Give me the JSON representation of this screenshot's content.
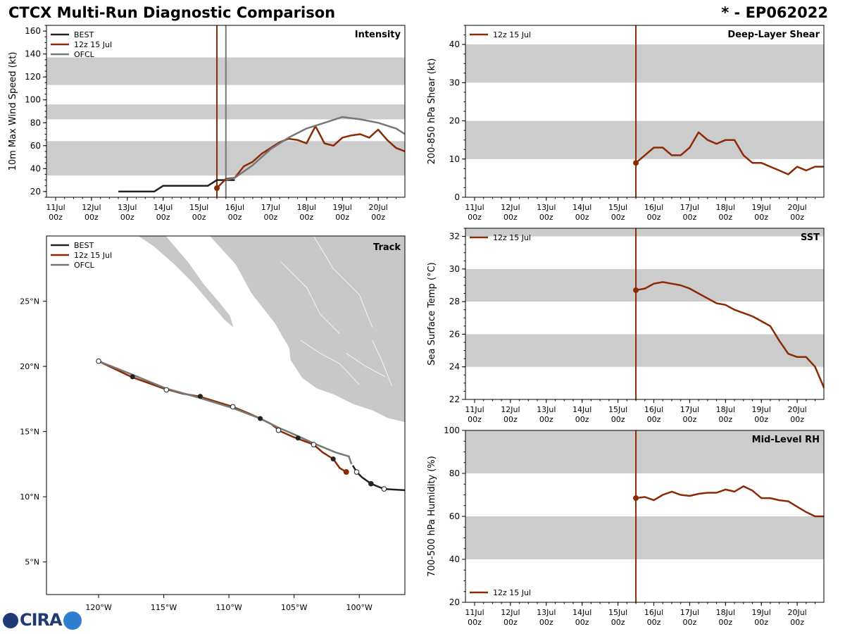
{
  "header": {
    "title": "CTCX Multi-Run Diagnostic Comparison",
    "storm_id": "* - EP062022"
  },
  "logo": {
    "text": "CIRA"
  },
  "colors": {
    "best": "#222222",
    "run": "#8b2a05",
    "ofcl": "#777777",
    "band": "#cccccc",
    "land": "#c8c8c8"
  },
  "time_axis": {
    "range_days": [
      0,
      5.8
    ],
    "ticks": [
      {
        "day": 0,
        "label": "11Jul",
        "sub": "00z"
      },
      {
        "day": 1,
        "label": "12Jul",
        "sub": "00z"
      },
      {
        "day": 2,
        "label": "13Jul",
        "sub": "00z"
      },
      {
        "day": 3,
        "label": "14Jul",
        "sub": "00z"
      },
      {
        "day": 4,
        "label": "15Jul",
        "sub": "00z"
      },
      {
        "day": 5,
        "label": "16Jul",
        "sub": "00z"
      },
      {
        "day": 6,
        "label": "17Jul",
        "sub": "00z"
      },
      {
        "day": 7,
        "label": "18Jul",
        "sub": "00z"
      },
      {
        "day": 8,
        "label": "19Jul",
        "sub": "00z"
      },
      {
        "day": 9,
        "label": "20Jul",
        "sub": "00z"
      }
    ]
  },
  "chart_data": [
    {
      "id": "intensity",
      "type": "line",
      "title": "Intensity",
      "ylabel": "10m Max Wind Speed (kt)",
      "xlim": [
        -0.25,
        9.75
      ],
      "ylim": [
        15,
        165
      ],
      "yticks": [
        20,
        40,
        60,
        80,
        100,
        120,
        140,
        160
      ],
      "bands": [
        [
          34,
          64
        ],
        [
          83,
          96
        ],
        [
          113,
          137
        ]
      ],
      "vlines": [
        {
          "x": 4.5,
          "series": "run"
        },
        {
          "x": 4.75,
          "series": "ofcl"
        }
      ],
      "legend": [
        "BEST",
        "12z 15 Jul",
        "OFCL"
      ],
      "series": [
        {
          "name": "BEST",
          "key": "best",
          "points": [
            [
              1.75,
              20
            ],
            [
              2,
              20
            ],
            [
              2.25,
              20
            ],
            [
              2.5,
              20
            ],
            [
              2.75,
              20
            ],
            [
              3,
              25
            ],
            [
              3.25,
              25
            ],
            [
              3.5,
              25
            ],
            [
              3.75,
              25
            ],
            [
              4,
              25
            ],
            [
              4.25,
              25
            ],
            [
              4.5,
              30
            ],
            [
              4.75,
              30
            ],
            [
              5,
              30
            ]
          ]
        },
        {
          "name": "12z 15 Jul",
          "key": "run",
          "start_marker": true,
          "points": [
            [
              4.5,
              23
            ],
            [
              4.75,
              31
            ],
            [
              5,
              32
            ],
            [
              5.25,
              42
            ],
            [
              5.5,
              46
            ],
            [
              5.75,
              53
            ],
            [
              6,
              58
            ],
            [
              6.25,
              63
            ],
            [
              6.5,
              66
            ],
            [
              6.75,
              65
            ],
            [
              7,
              62
            ],
            [
              7.25,
              77
            ],
            [
              7.5,
              62
            ],
            [
              7.75,
              60
            ],
            [
              8,
              67
            ],
            [
              8.25,
              69
            ],
            [
              8.5,
              70
            ],
            [
              8.75,
              67
            ],
            [
              9,
              74
            ],
            [
              9.25,
              65
            ],
            [
              9.5,
              58
            ],
            [
              9.75,
              55
            ]
          ]
        },
        {
          "name": "OFCL",
          "key": "ofcl",
          "points": [
            [
              4.75,
              30
            ],
            [
              5,
              32
            ],
            [
              5.5,
              43
            ],
            [
              6,
              57
            ],
            [
              6.5,
              67
            ],
            [
              7,
              75
            ],
            [
              7.5,
              80
            ],
            [
              8,
              85
            ],
            [
              8.5,
              83
            ],
            [
              9,
              80
            ],
            [
              9.5,
              75
            ],
            [
              9.75,
              70
            ],
            [
              10,
              65
            ]
          ]
        }
      ]
    },
    {
      "id": "shear",
      "type": "line",
      "title": "Deep-Layer Shear",
      "ylabel": "200-850 hPa Shear (kt)",
      "xlim": [
        -0.25,
        9.75
      ],
      "ylim": [
        0,
        45
      ],
      "yticks": [
        0,
        10,
        20,
        30,
        40
      ],
      "bands": [
        [
          10,
          20
        ],
        [
          30,
          40
        ]
      ],
      "vlines": [
        {
          "x": 4.5,
          "series": "run"
        }
      ],
      "legend": [
        "12z 15 Jul"
      ],
      "series": [
        {
          "name": "12z 15 Jul",
          "key": "run",
          "start_marker": true,
          "points": [
            [
              4.5,
              9
            ],
            [
              4.75,
              11
            ],
            [
              5,
              13
            ],
            [
              5.25,
              13
            ],
            [
              5.5,
              11
            ],
            [
              5.75,
              11
            ],
            [
              6,
              13
            ],
            [
              6.25,
              17
            ],
            [
              6.5,
              15
            ],
            [
              6.75,
              14
            ],
            [
              7,
              15
            ],
            [
              7.25,
              15
            ],
            [
              7.5,
              11
            ],
            [
              7.75,
              9
            ],
            [
              8,
              9
            ],
            [
              8.25,
              8
            ],
            [
              8.5,
              7
            ],
            [
              8.75,
              6
            ],
            [
              9,
              8
            ],
            [
              9.25,
              7
            ],
            [
              9.5,
              8
            ],
            [
              9.75,
              8
            ]
          ]
        }
      ]
    },
    {
      "id": "sst",
      "type": "line",
      "title": "SST",
      "ylabel": "Sea Surface Temp (°C)",
      "xlim": [
        -0.25,
        9.75
      ],
      "ylim": [
        22,
        32.5
      ],
      "yticks": [
        22,
        24,
        26,
        28,
        30,
        32
      ],
      "bands": [
        [
          24,
          26
        ],
        [
          28,
          30
        ],
        [
          32,
          32.5
        ]
      ],
      "vlines": [
        {
          "x": 4.5,
          "series": "run"
        }
      ],
      "legend": [
        "12z 15 Jul"
      ],
      "series": [
        {
          "name": "12z 15 Jul",
          "key": "run",
          "start_marker": true,
          "points": [
            [
              4.5,
              28.7
            ],
            [
              4.75,
              28.8
            ],
            [
              5,
              29.1
            ],
            [
              5.25,
              29.2
            ],
            [
              5.5,
              29.1
            ],
            [
              5.75,
              29
            ],
            [
              6,
              28.8
            ],
            [
              6.25,
              28.5
            ],
            [
              6.5,
              28.2
            ],
            [
              6.75,
              27.9
            ],
            [
              7,
              27.8
            ],
            [
              7.25,
              27.5
            ],
            [
              7.5,
              27.3
            ],
            [
              7.75,
              27.1
            ],
            [
              8,
              26.8
            ],
            [
              8.25,
              26.5
            ],
            [
              8.5,
              25.6
            ],
            [
              8.75,
              24.8
            ],
            [
              9,
              24.6
            ],
            [
              9.25,
              24.6
            ],
            [
              9.5,
              24
            ],
            [
              9.75,
              22.7
            ]
          ]
        }
      ]
    },
    {
      "id": "rh",
      "type": "line",
      "title": "Mid-Level RH",
      "ylabel": "700-500 hPa Humidity (%)",
      "xlim": [
        -0.25,
        9.75
      ],
      "ylim": [
        20,
        100
      ],
      "yticks": [
        20,
        40,
        60,
        80,
        100
      ],
      "bands": [
        [
          40,
          60
        ],
        [
          80,
          100
        ]
      ],
      "vlines": [
        {
          "x": 4.5,
          "series": "run"
        }
      ],
      "legend": [
        "12z 15 Jul"
      ],
      "legend_position": "bottom-left",
      "series": [
        {
          "name": "12z 15 Jul",
          "key": "run",
          "start_marker": true,
          "points": [
            [
              4.5,
              68.5
            ],
            [
              4.75,
              69
            ],
            [
              5,
              67.5
            ],
            [
              5.25,
              70
            ],
            [
              5.5,
              71.5
            ],
            [
              5.75,
              70
            ],
            [
              6,
              69.5
            ],
            [
              6.25,
              70.5
            ],
            [
              6.5,
              71
            ],
            [
              6.75,
              71
            ],
            [
              7,
              72.5
            ],
            [
              7.25,
              71.5
            ],
            [
              7.5,
              74
            ],
            [
              7.75,
              72
            ],
            [
              8,
              68.5
            ],
            [
              8.25,
              68.5
            ],
            [
              8.5,
              67.5
            ],
            [
              8.75,
              67
            ],
            [
              9,
              64.5
            ],
            [
              9.25,
              62
            ],
            [
              9.5,
              60
            ],
            [
              9.75,
              60
            ]
          ]
        }
      ]
    },
    {
      "id": "track",
      "type": "scatter",
      "title": "Track",
      "xlim": [
        -124,
        -96.5
      ],
      "ylim": [
        2.5,
        30
      ],
      "xticks": [
        {
          "v": -120,
          "label": "120°W"
        },
        {
          "v": -115,
          "label": "115°W"
        },
        {
          "v": -110,
          "label": "110°W"
        },
        {
          "v": -105,
          "label": "105°W"
        },
        {
          "v": -100,
          "label": "100°W"
        }
      ],
      "yticks": [
        {
          "v": 5,
          "label": "5°N"
        },
        {
          "v": 10,
          "label": "10°N"
        },
        {
          "v": 15,
          "label": "15°N"
        },
        {
          "v": 20,
          "label": "20°N"
        },
        {
          "v": 25,
          "label": "25°N"
        }
      ],
      "legend": [
        "BEST",
        "12z 15 Jul",
        "OFCL"
      ],
      "series": [
        {
          "name": "BEST",
          "key": "best",
          "points": [
            [
              -96.5,
              10.5
            ],
            [
              -98.1,
              10.6
            ],
            [
              -99.1,
              11
            ],
            [
              -99.8,
              11.5
            ],
            [
              -100.2,
              11.9
            ],
            [
              -100.5,
              12.4
            ]
          ],
          "markers": [
            [
              -98.1,
              10.6,
              "open"
            ],
            [
              -99.1,
              11,
              "filled"
            ],
            [
              -100.2,
              11.9,
              "open"
            ]
          ]
        },
        {
          "name": "12z 15 Jul",
          "key": "run",
          "points": [
            [
              -120,
              20.4
            ],
            [
              -117.5,
              19.2
            ],
            [
              -115,
              18.3
            ],
            [
              -113.5,
              17.9
            ],
            [
              -112.3,
              17.7
            ],
            [
              -111,
              17.3
            ],
            [
              -109.7,
              16.9
            ],
            [
              -108.5,
              16.4
            ],
            [
              -107.6,
              16
            ],
            [
              -106.8,
              15.6
            ],
            [
              -106,
              15
            ],
            [
              -105.1,
              14.6
            ],
            [
              -104.3,
              14.3
            ],
            [
              -103.5,
              14
            ],
            [
              -102.8,
              13.4
            ],
            [
              -102,
              12.9
            ],
            [
              -101.5,
              12.2
            ],
            [
              -101,
              11.9
            ]
          ],
          "end_marker": true
        },
        {
          "name": "OFCL",
          "key": "ofcl",
          "points": [
            [
              -100.6,
              12.5
            ],
            [
              -100.8,
              13.1
            ],
            [
              -101.8,
              13.4
            ],
            [
              -103.5,
              14.1
            ],
            [
              -104.8,
              14.7
            ],
            [
              -106.2,
              15.3
            ],
            [
              -107.6,
              16
            ],
            [
              -109.7,
              16.8
            ],
            [
              -112.3,
              17.6
            ],
            [
              -114.8,
              18.3
            ],
            [
              -117.5,
              19.4
            ],
            [
              -120,
              20.4
            ]
          ],
          "markers": [
            [
              -103.5,
              14,
              "open"
            ],
            [
              -106.2,
              15.1,
              "open"
            ],
            [
              -109.7,
              16.9,
              "open"
            ],
            [
              -114.8,
              18.2,
              "open"
            ],
            [
              -120,
              20.4,
              "open"
            ]
          ]
        }
      ],
      "best_markers": [
        [
          -117.4,
          19.2
        ],
        [
          -112.2,
          17.7
        ],
        [
          -107.6,
          16
        ],
        [
          -104.7,
          14.5
        ],
        [
          -102,
          12.9
        ]
      ]
    }
  ]
}
